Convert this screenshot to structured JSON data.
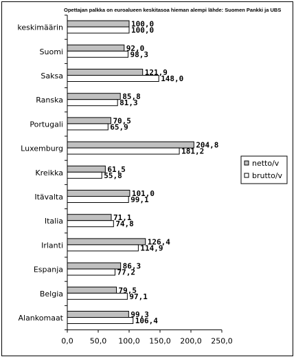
{
  "chart_data": {
    "type": "bar",
    "orientation": "horizontal",
    "title": "Opettajan palkka on euroalueen keskitasoa hieman alempi lähde: Suomen Pankki ja UBS",
    "categories": [
      "keskimäärin",
      "Suomi",
      "Saksa",
      "Ranska",
      "Portugali",
      "Luxemburg",
      "Kreikka",
      "Itävalta",
      "Italia",
      "Irlanti",
      "Espanja",
      "Belgia",
      "Alankomaat"
    ],
    "series": [
      {
        "name": "netto/v",
        "color": "#c0c0c0",
        "values": [
          100.0,
          92.0,
          121.9,
          85.8,
          70.5,
          204.8,
          61.5,
          101.0,
          71.1,
          126.4,
          86.3,
          79.5,
          99.3
        ],
        "labels": [
          "100,0",
          "92,0",
          "121,9",
          "85,8",
          "70,5",
          "204,8",
          "61,5",
          "101,0",
          "71,1",
          "126,4",
          "86,3",
          "79,5",
          "99,3"
        ]
      },
      {
        "name": "brutto/v",
        "color": "#ffffff",
        "values": [
          100.0,
          98.3,
          148.0,
          81.3,
          65.9,
          181.2,
          55.8,
          99.1,
          74.8,
          114.9,
          77.2,
          97.1,
          106.4
        ],
        "labels": [
          "100,0",
          "98,3",
          "148,0",
          "81,3",
          "65,9",
          "181,2",
          "55,8",
          "99,1",
          "74,8",
          "114,9",
          "77,2",
          "97,1",
          "106,4"
        ]
      }
    ],
    "xlim": [
      0,
      250
    ],
    "xticks": [
      0,
      50,
      100,
      150,
      200,
      250
    ],
    "xtick_labels": [
      "0,0",
      "50,0",
      "100,0",
      "150,0",
      "200,0",
      "250,0"
    ],
    "legend_position": "right"
  }
}
